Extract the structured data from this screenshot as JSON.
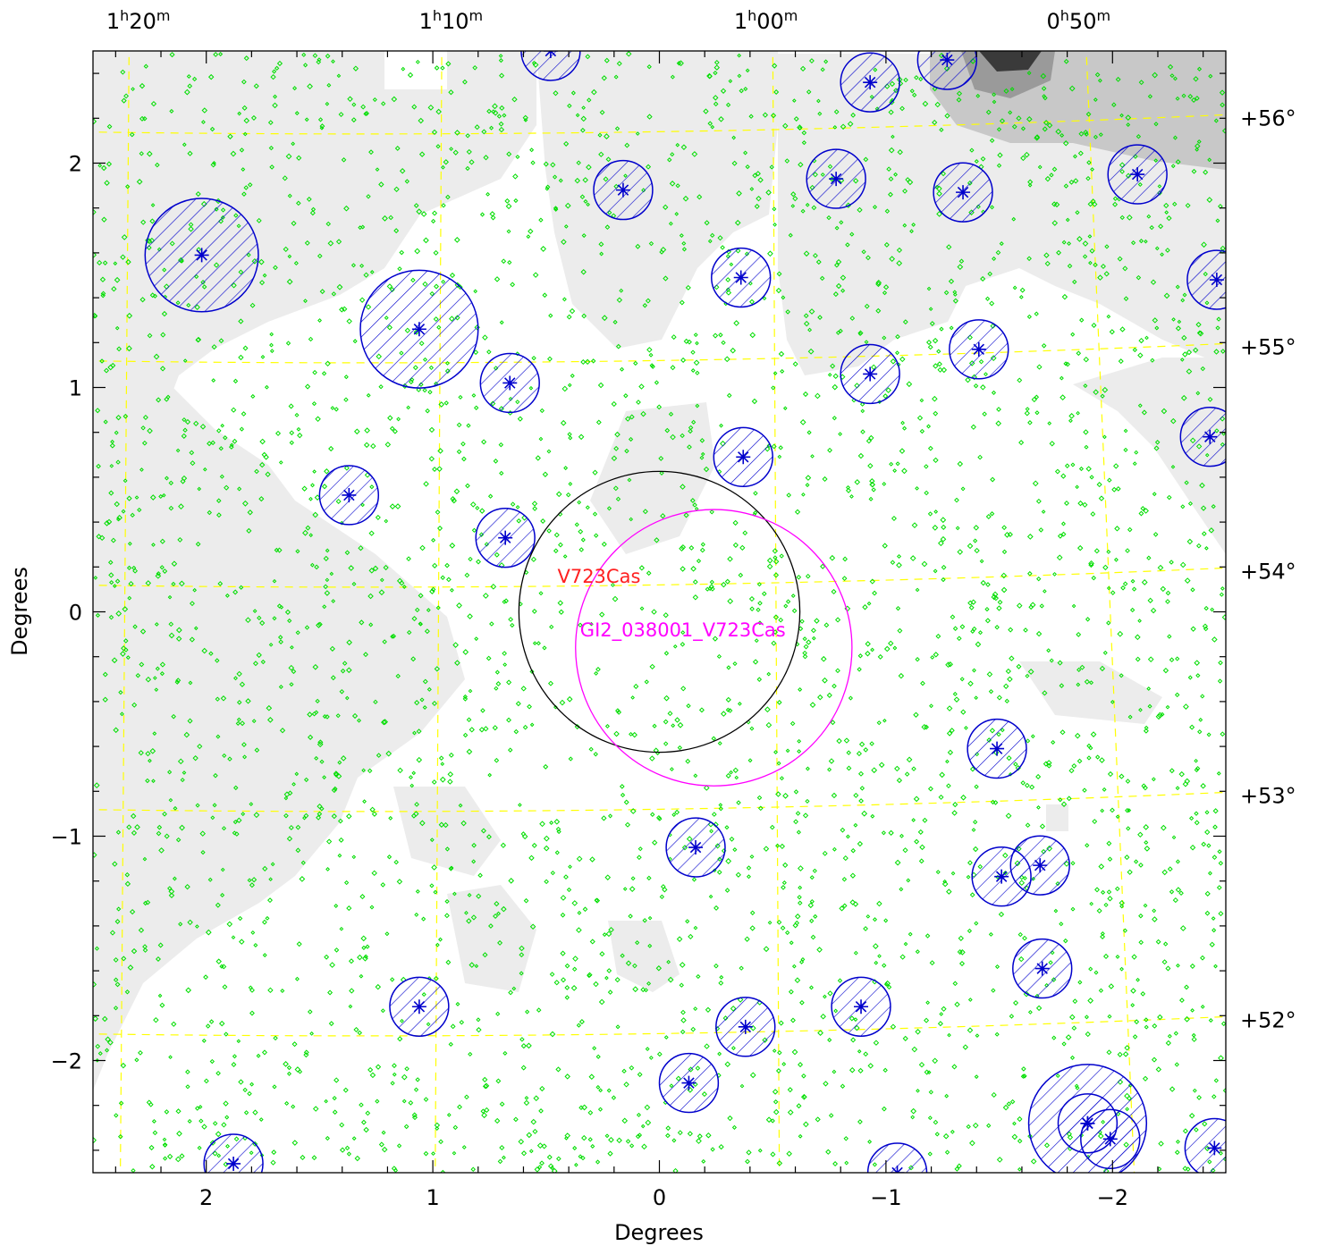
{
  "chart_data": {
    "type": "scatter",
    "xlabel": "Degrees",
    "ylabel": "Degrees",
    "xlim": [
      2.5,
      -2.5
    ],
    "ylim": [
      -2.5,
      2.5
    ],
    "x_ticks": [
      {
        "value": 2,
        "label": "2"
      },
      {
        "value": 1,
        "label": "1"
      },
      {
        "value": 0,
        "label": "0"
      },
      {
        "value": -1,
        "label": "−1"
      },
      {
        "value": -2,
        "label": "−2"
      }
    ],
    "y_ticks": [
      {
        "value": 2,
        "label": "2"
      },
      {
        "value": 1,
        "label": "1"
      },
      {
        "value": 0,
        "label": "0"
      },
      {
        "value": -1,
        "label": "−1"
      },
      {
        "value": -2,
        "label": "−2"
      }
    ],
    "ra_labels": [
      {
        "x": 2.3,
        "h": "1",
        "m": "20"
      },
      {
        "x": 0.92,
        "h": "1",
        "m": "10"
      },
      {
        "x": -0.47,
        "h": "1",
        "m": "00"
      },
      {
        "x": -1.85,
        "h": "0",
        "m": "50"
      }
    ],
    "dec_labels": [
      {
        "y": 2.2,
        "label": "+56°"
      },
      {
        "y": 1.18,
        "label": "+55°"
      },
      {
        "y": 0.18,
        "label": "+54°"
      },
      {
        "y": -0.82,
        "label": "+53°"
      },
      {
        "y": -1.82,
        "label": "+52°"
      }
    ],
    "colors": {
      "catalog_stars": "#00dd00",
      "bright_sources": "#0000cc",
      "grid": "#ffff00",
      "target_circle": "#000000",
      "field_circle": "#ff00ff",
      "target_label": "#ff2020"
    },
    "target": {
      "name": "V723Cas",
      "x": 0.0,
      "y": 0.0,
      "radius": 0.62,
      "label_x": 0.45,
      "label_y": 0.13
    },
    "field": {
      "name": "GI2_038001_V723Cas",
      "x": -0.24,
      "y": -0.16,
      "radius": 0.61,
      "label_x": 0.35,
      "label_y": -0.11
    },
    "bright_sources": [
      {
        "x": 2.02,
        "y": 1.59,
        "r": 0.25
      },
      {
        "x": 1.06,
        "y": 1.26,
        "r": 0.26
      },
      {
        "x": 0.66,
        "y": 1.02,
        "r": 0.13
      },
      {
        "x": 1.37,
        "y": 0.52,
        "r": 0.13
      },
      {
        "x": 0.68,
        "y": 0.33,
        "r": 0.13
      },
      {
        "x": 0.48,
        "y": 2.5,
        "r": 0.13
      },
      {
        "x": 0.16,
        "y": 1.88,
        "r": 0.13
      },
      {
        "x": -0.36,
        "y": 1.49,
        "r": 0.13
      },
      {
        "x": -0.37,
        "y": 0.69,
        "r": 0.13
      },
      {
        "x": -0.78,
        "y": 1.93,
        "r": 0.13
      },
      {
        "x": -0.93,
        "y": 2.36,
        "r": 0.13
      },
      {
        "x": -0.93,
        "y": 1.06,
        "r": 0.13
      },
      {
        "x": -1.27,
        "y": 2.46,
        "r": 0.13
      },
      {
        "x": -1.34,
        "y": 1.87,
        "r": 0.13
      },
      {
        "x": -1.41,
        "y": 1.17,
        "r": 0.13
      },
      {
        "x": -2.11,
        "y": 1.95,
        "r": 0.13
      },
      {
        "x": -2.46,
        "y": 1.48,
        "r": 0.13
      },
      {
        "x": -2.43,
        "y": 0.78,
        "r": 0.13
      },
      {
        "x": -1.49,
        "y": -0.61,
        "r": 0.13
      },
      {
        "x": -0.16,
        "y": -1.05,
        "r": 0.13
      },
      {
        "x": -1.51,
        "y": -1.18,
        "r": 0.13
      },
      {
        "x": -1.68,
        "y": -1.13,
        "r": 0.13
      },
      {
        "x": -1.69,
        "y": -1.59,
        "r": 0.13
      },
      {
        "x": 1.06,
        "y": -1.76,
        "r": 0.13
      },
      {
        "x": -0.38,
        "y": -1.85,
        "r": 0.13
      },
      {
        "x": -0.89,
        "y": -1.76,
        "r": 0.13
      },
      {
        "x": -0.13,
        "y": -2.1,
        "r": 0.13
      },
      {
        "x": -1.89,
        "y": -2.28,
        "r": 0.26
      },
      {
        "x": -1.89,
        "y": -2.28,
        "r": 0.13
      },
      {
        "x": -1.99,
        "y": -2.35,
        "r": 0.13
      },
      {
        "x": 1.88,
        "y": -2.46,
        "r": 0.13
      },
      {
        "x": -1.05,
        "y": -2.5,
        "r": 0.13
      },
      {
        "x": -2.45,
        "y": -2.39,
        "r": 0.13
      }
    ]
  }
}
